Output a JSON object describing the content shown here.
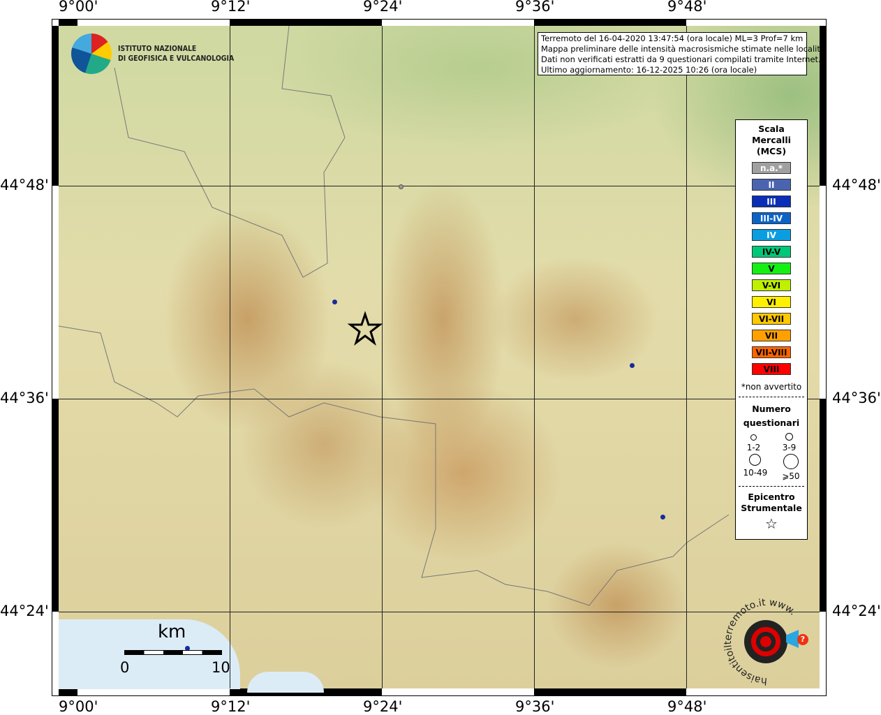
{
  "lon_ticks": [
    "9°00'",
    "9°12'",
    "9°24'",
    "9°36'",
    "9°48'"
  ],
  "lat_ticks": [
    "44°48'",
    "44°36'",
    "44°24'"
  ],
  "logo": {
    "line1": "ISTITUTO NAZIONALE",
    "line2": "DI GEOFISICA E VULCANOLOGIA"
  },
  "info": [
    "Terremoto del 16-04-2020 13:47:54 (ora locale) ML=3 Prof=7 km",
    "Mappa preliminare delle intensità macrosismiche stimate nelle località",
    "Dati non verificati estratti da 9 questionari compilati tramite Internet.",
    "Ultimo aggiornamento: 16-12-2025 10:26 (ora locale)"
  ],
  "legend": {
    "title": [
      "Scala",
      "Mercalli",
      "(MCS)"
    ],
    "scale": [
      {
        "label": "n.a.*",
        "color": "#a0a0a0",
        "text": "#fff"
      },
      {
        "label": "II",
        "color": "#4a64b0",
        "text": "#fff"
      },
      {
        "label": "III",
        "color": "#0a2eb8",
        "text": "#fff"
      },
      {
        "label": "III-IV",
        "color": "#0a64c8",
        "text": "#fff"
      },
      {
        "label": "IV",
        "color": "#0a9ee0",
        "text": "#fff"
      },
      {
        "label": "IV-V",
        "color": "#00c878",
        "text": "#000"
      },
      {
        "label": "V",
        "color": "#14f014",
        "text": "#000"
      },
      {
        "label": "V-VI",
        "color": "#bef000",
        "text": "#000"
      },
      {
        "label": "VI",
        "color": "#fff000",
        "text": "#000"
      },
      {
        "label": "VI-VII",
        "color": "#ffc800",
        "text": "#000"
      },
      {
        "label": "VII",
        "color": "#ffa000",
        "text": "#000"
      },
      {
        "label": "VII-VIII",
        "color": "#ff6400",
        "text": "#000"
      },
      {
        "label": "VIII",
        "color": "#ff0000",
        "text": "#000"
      }
    ],
    "note": "*non avvertito",
    "count_title": [
      "Numero",
      "questionari"
    ],
    "counts": [
      "1-2",
      "3-9",
      "10-49",
      "⩾50"
    ],
    "epicenter_title": [
      "Epicentro",
      "Strumentale"
    ]
  },
  "scalebar": {
    "unit": "km",
    "start": "0",
    "end": "10"
  },
  "haisentito": "haisentitoilterremoto.it www.",
  "points_color": "#1a2a9a"
}
